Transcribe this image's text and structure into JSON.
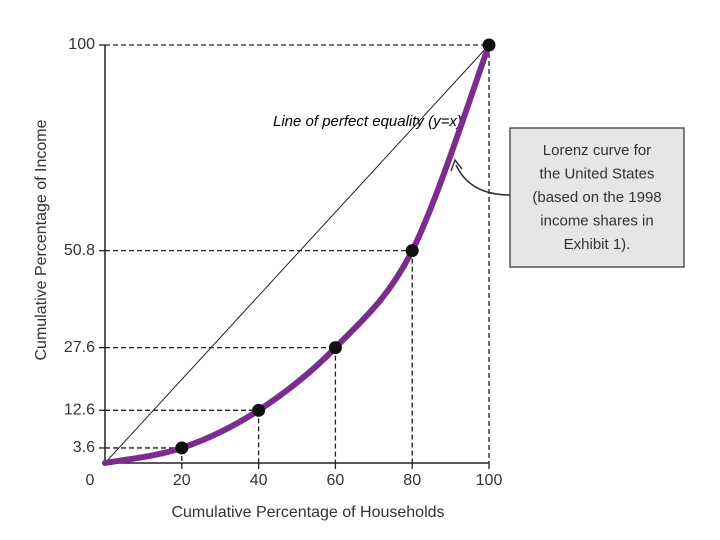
{
  "chart_data": {
    "type": "line",
    "x_label": "Cumulative Percentage of Households",
    "y_label": "Cumulative Percentage of Income",
    "x": [
      0,
      20,
      40,
      60,
      80,
      100
    ],
    "series": [
      {
        "name": "Lorenz curve",
        "color": "#7b2d8e",
        "values": [
          0,
          3.6,
          12.6,
          27.6,
          50.8,
          100
        ]
      }
    ],
    "xlim": [
      0,
      100
    ],
    "ylim": [
      0,
      100
    ],
    "xticks": [
      0,
      20,
      40,
      60,
      80,
      100
    ],
    "yticks": [
      3.6,
      12.6,
      27.6,
      50.8,
      100
    ],
    "equality_label": "Line of perfect equality (y=x)",
    "callout": [
      "Lorenz curve for",
      "the United States",
      "(based on the 1998",
      "income shares in",
      "Exhibit 1)."
    ]
  }
}
